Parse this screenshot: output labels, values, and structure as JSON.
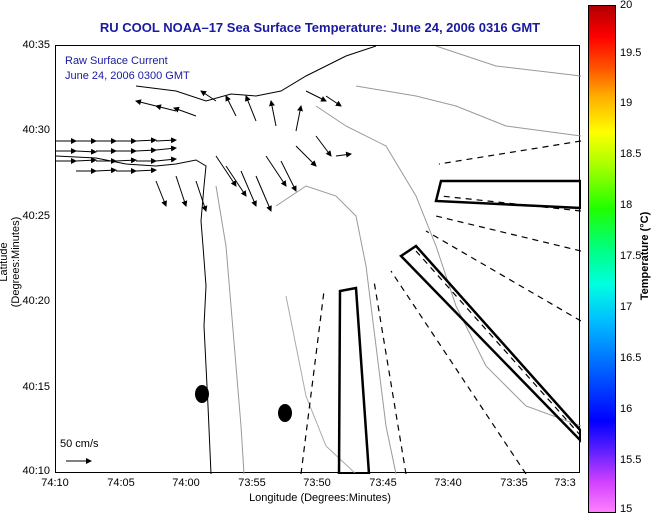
{
  "title": "RU COOL   NOAA–17  Sea Surface Temperature:  June 24, 2006 0316 GMT",
  "legend": {
    "line1": "Raw Surface Current",
    "line2": "June 24, 2006 0300 GMT"
  },
  "scale_label": "50 cm/s",
  "axes": {
    "xlabel": "Longitude (Degrees:Minutes)",
    "ylabel": "Latitude (Degrees:Minutes)",
    "xticks": [
      "74:10",
      "74:05",
      "74:00",
      "73:55",
      "73:50",
      "73:45",
      "73:40",
      "73:35",
      "73:3"
    ],
    "yticks": [
      "40:35",
      "40:30",
      "40:25",
      "40:20",
      "40:15",
      "40:10"
    ]
  },
  "colorbar": {
    "label": "Temperature (°C)",
    "ticks": [
      "20",
      "19.5",
      "19",
      "18.5",
      "18",
      "17.5",
      "17",
      "16.5",
      "16",
      "15.5",
      "15"
    ]
  }
}
